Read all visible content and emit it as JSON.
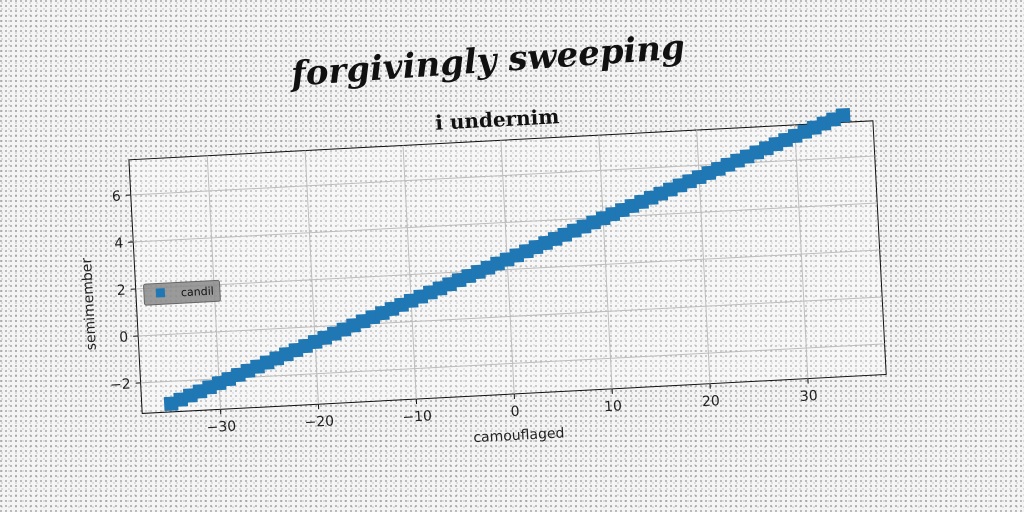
{
  "figure_title": "forgivingly sweeping",
  "chart_data": {
    "type": "scatter",
    "title": "i undernim",
    "xlabel": "camouflaged",
    "ylabel": "semimember",
    "xlim": [
      -38,
      38
    ],
    "ylim": [
      -3.3,
      7.5
    ],
    "xticks": [
      -30,
      -20,
      -10,
      0,
      10,
      20,
      30
    ],
    "yticks": [
      -2,
      0,
      2,
      4,
      6
    ],
    "xtick_labels": [
      "−30",
      "−20",
      "−10",
      "0",
      "10",
      "20",
      "30"
    ],
    "ytick_labels": [
      "−2",
      "0",
      "2",
      "4",
      "6"
    ],
    "grid": true,
    "legend_position": "center-left",
    "series": [
      {
        "name": "candil",
        "color": "#1f77b4",
        "marker": "square",
        "x_start": -35,
        "x_end": 35,
        "count": 71,
        "y_start": -2.95,
        "y_end": 7.8
      }
    ]
  }
}
